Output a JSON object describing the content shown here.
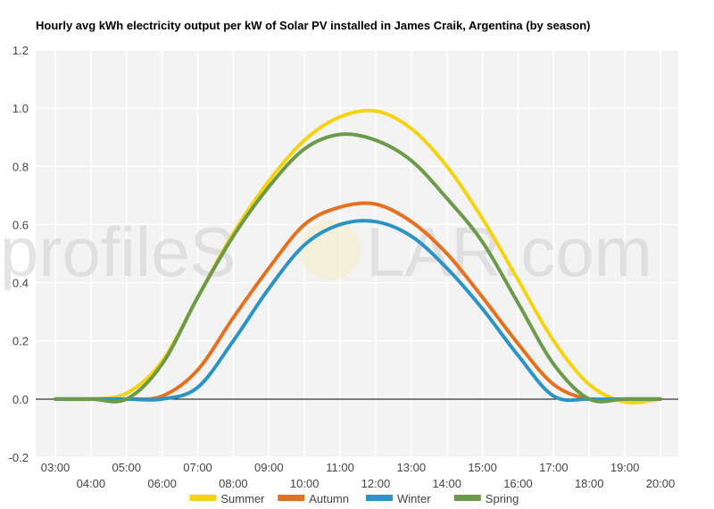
{
  "watermark": {
    "left": "profileS",
    "right": "LAR.com"
  },
  "chart_data": {
    "type": "line",
    "title": "Hourly avg kWh electricity output per kW of Solar PV installed in James Craik, Argentina (by season)",
    "xlabel": "",
    "ylabel": "",
    "ylim": [
      -0.2,
      1.2
    ],
    "yticks": [
      "-0.2",
      "0.0",
      "0.2",
      "0.4",
      "0.6",
      "0.8",
      "1.0",
      "1.2"
    ],
    "x": [
      "03:00",
      "04:00",
      "05:00",
      "06:00",
      "07:00",
      "08:00",
      "09:00",
      "10:00",
      "11:00",
      "12:00",
      "13:00",
      "14:00",
      "15:00",
      "16:00",
      "17:00",
      "18:00",
      "19:00",
      "20:00"
    ],
    "grid": true,
    "legend_position": "bottom",
    "series": [
      {
        "name": "Summer",
        "color": "#f5d312",
        "values": [
          0,
          0,
          0.02,
          0.13,
          0.35,
          0.57,
          0.75,
          0.89,
          0.97,
          0.99,
          0.93,
          0.8,
          0.62,
          0.41,
          0.2,
          0.05,
          -0.01,
          0
        ]
      },
      {
        "name": "Autumn",
        "color": "#e3711f",
        "values": [
          0,
          0,
          0,
          0.01,
          0.1,
          0.28,
          0.45,
          0.6,
          0.66,
          0.67,
          0.61,
          0.5,
          0.35,
          0.19,
          0.05,
          0,
          0,
          0
        ]
      },
      {
        "name": "Winter",
        "color": "#2b94c5",
        "values": [
          0,
          0,
          0,
          0,
          0.04,
          0.2,
          0.38,
          0.53,
          0.6,
          0.61,
          0.56,
          0.45,
          0.31,
          0.15,
          0.01,
          0,
          0,
          0
        ]
      },
      {
        "name": "Spring",
        "color": "#6a9a4a",
        "values": [
          0,
          0,
          0,
          0.12,
          0.35,
          0.56,
          0.73,
          0.86,
          0.91,
          0.89,
          0.82,
          0.69,
          0.54,
          0.33,
          0.12,
          0,
          0,
          0
        ]
      }
    ]
  }
}
